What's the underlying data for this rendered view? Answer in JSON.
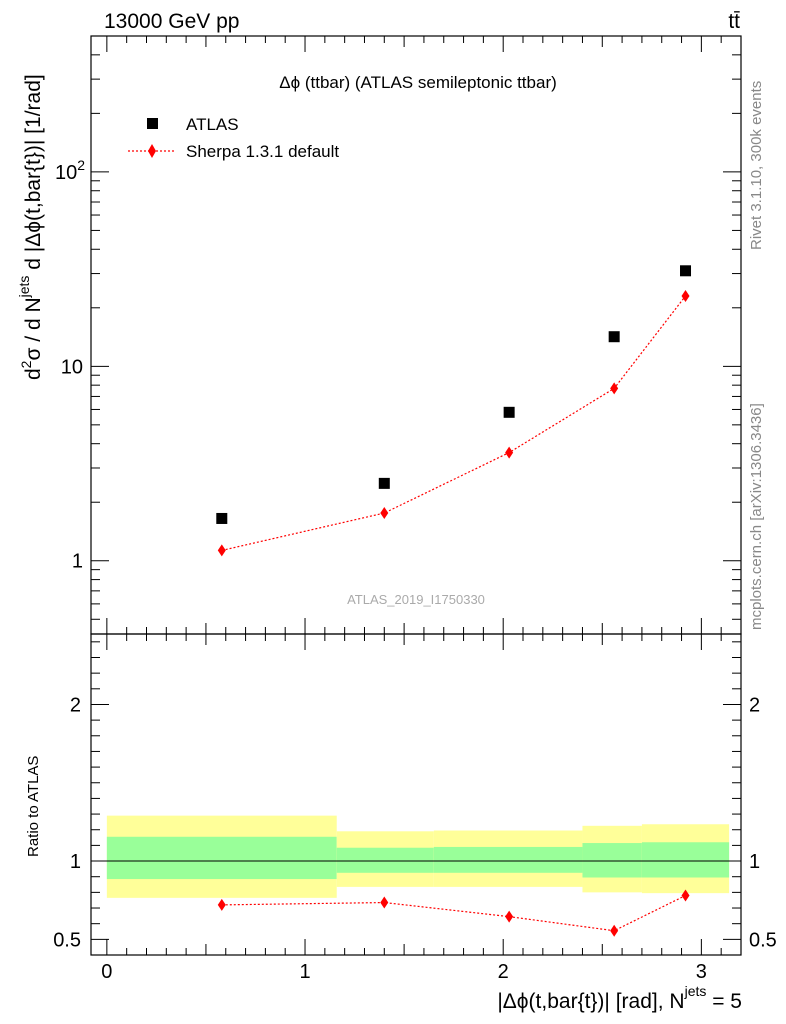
{
  "header": {
    "energy_label": "13000 GeV pp",
    "process_label": "tt̄"
  },
  "side_labels": {
    "rivet": "Rivet 3.1.10,  300k events",
    "mcplots": "mcplots.cern.ch [arXiv:1306.3436]"
  },
  "watermark": "ATLAS_2019_I1750330",
  "chart_data": [
    {
      "type": "scatter",
      "panel": "main",
      "title": "Δϕ (ttbar) (ATLAS semileptonic ttbar)",
      "ylabel": "d²σ / d N^jets d |Δϕ(t,bar{t})| [1/rad]",
      "ylabel_parts": {
        "d": "d",
        "two": "2",
        "sigma": "σ",
        "mid": " / d N",
        "jets": "jets",
        "rest": " d |Δϕ(t,bar{t})| [1/rad]"
      },
      "yscale": "log",
      "xlim": [
        -0.08,
        3.2
      ],
      "ylim": [
        0.42,
        500
      ],
      "yticks": [
        {
          "value": 1,
          "label": "1"
        },
        {
          "value": 10,
          "label": "10"
        },
        {
          "value": 100,
          "label": "10",
          "sup": "2"
        }
      ],
      "legend": {
        "position": "top-left",
        "entries": [
          {
            "name": "ATLAS",
            "marker": "square",
            "color": "#000000"
          },
          {
            "name": "Sherpa 1.3.1 default",
            "marker": "diamond",
            "color": "#ff0000",
            "line": "dotted"
          }
        ]
      },
      "series": [
        {
          "name": "ATLAS",
          "x": [
            0.58,
            1.4,
            2.03,
            2.56,
            2.92
          ],
          "y": [
            1.65,
            2.5,
            5.8,
            14.2,
            31.0
          ]
        },
        {
          "name": "Sherpa 1.3.1 default",
          "x": [
            0.58,
            1.4,
            2.03,
            2.56,
            2.92
          ],
          "y": [
            1.13,
            1.76,
            3.6,
            7.7,
            23.0
          ]
        }
      ]
    },
    {
      "type": "line",
      "panel": "ratio",
      "ylabel": "Ratio to ATLAS",
      "xlabel": "|Δϕ(t,bar{t})| [rad], N^jets = 5",
      "xlabel_parts": {
        "main": "|Δϕ(t,bar{t})| [rad], N",
        "jets": "jets",
        "tail": " = 5"
      },
      "xlim": [
        -0.08,
        3.2
      ],
      "ylim": [
        0.4,
        2.45
      ],
      "xticks": [
        {
          "value": 0,
          "label": "0"
        },
        {
          "value": 1,
          "label": "1"
        },
        {
          "value": 2,
          "label": "2"
        },
        {
          "value": 3,
          "label": "3"
        }
      ],
      "yticks": [
        {
          "value": 0.5,
          "label": "0.5"
        },
        {
          "value": 1,
          "label": "1"
        },
        {
          "value": 2,
          "label": "2"
        }
      ],
      "reference_line": 1.0,
      "uncertainty_bands": [
        {
          "x0": 0.0,
          "x1": 1.16,
          "stat_lo": 0.885,
          "stat_hi": 1.155,
          "tot_lo": 0.765,
          "tot_hi": 1.29
        },
        {
          "x0": 1.16,
          "x1": 1.65,
          "stat_lo": 0.925,
          "stat_hi": 1.085,
          "tot_lo": 0.835,
          "tot_hi": 1.19
        },
        {
          "x0": 1.65,
          "x1": 2.4,
          "stat_lo": 0.925,
          "stat_hi": 1.09,
          "tot_lo": 0.835,
          "tot_hi": 1.195
        },
        {
          "x0": 2.4,
          "x1": 2.7,
          "stat_lo": 0.895,
          "stat_hi": 1.115,
          "tot_lo": 0.8,
          "tot_hi": 1.225
        },
        {
          "x0": 2.7,
          "x1": 3.14,
          "stat_lo": 0.895,
          "stat_hi": 1.12,
          "tot_lo": 0.795,
          "tot_hi": 1.235
        }
      ],
      "series": [
        {
          "name": "Sherpa 1.3.1 default",
          "x": [
            0.58,
            1.4,
            2.03,
            2.56,
            2.92
          ],
          "y": [
            0.72,
            0.735,
            0.645,
            0.555,
            0.78
          ]
        }
      ]
    }
  ],
  "colors": {
    "data": "#000000",
    "mc": "#ff0000",
    "stat_band": "#99ff99",
    "total_band": "#ffff99",
    "side_text": "#888888"
  }
}
